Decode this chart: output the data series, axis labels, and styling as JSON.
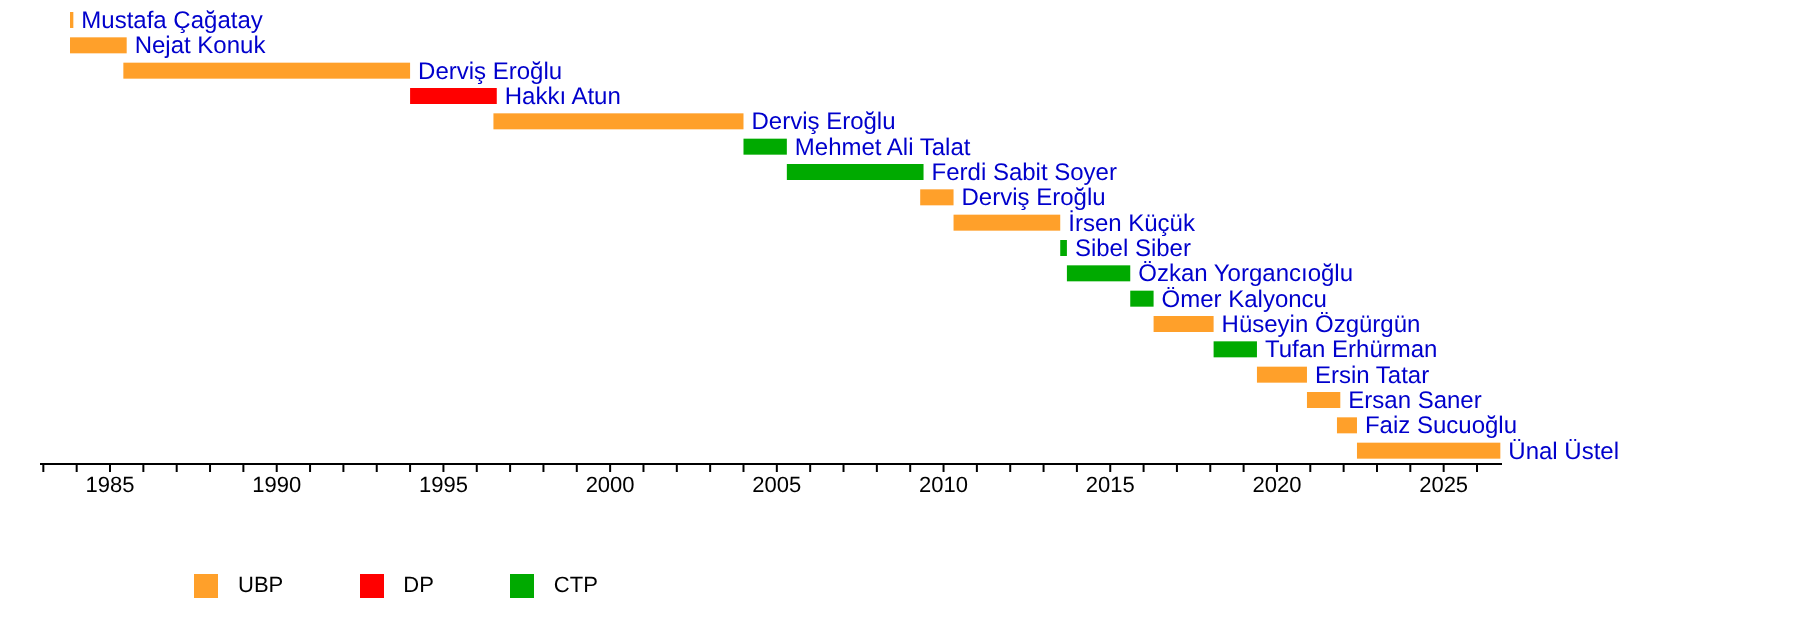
{
  "chart_data": {
    "type": "bar",
    "orientation": "horizontal",
    "categories": [
      "Mustafa Çağatay",
      "Nejat Konuk",
      "Derviş Eroğlu",
      "Hakkı Atun",
      "Derviş Eroğlu",
      "Mehmet Ali Talat",
      "Ferdi Sabit Soyer",
      "Derviş Eroğlu",
      "İrsen Küçük",
      "Sibel Siber",
      "Özkan Yorgancıoğlu",
      "Ömer Kalyoncu",
      "Hüseyin Özgürgün",
      "Tufan Erhürman",
      "Ersin Tatar",
      "Ersan Saner",
      "Faiz Sucuoğlu",
      "Ünal Üstel"
    ],
    "series": [
      {
        "name": "UBP",
        "color": "#ffa02a",
        "base": [
          1983.8,
          1983.8,
          1985.4,
          null,
          1996.5,
          null,
          null,
          2009.3,
          2010.3,
          null,
          null,
          null,
          2016.3,
          null,
          2019.4,
          2020.9,
          2021.8,
          2022.4
        ],
        "values": [
          0.1,
          1.7,
          8.6,
          null,
          7.5,
          null,
          null,
          1.0,
          3.2,
          null,
          null,
          null,
          1.8,
          null,
          1.5,
          1.0,
          0.6,
          4.3
        ]
      },
      {
        "name": "DP",
        "color": "#ff0000",
        "base": [
          null,
          null,
          null,
          1994.0,
          null,
          null,
          null,
          null,
          null,
          null,
          null,
          null,
          null,
          null,
          null,
          null,
          null,
          null
        ],
        "values": [
          null,
          null,
          null,
          2.6,
          null,
          null,
          null,
          null,
          null,
          null,
          null,
          null,
          null,
          null,
          null,
          null,
          null,
          null
        ]
      },
      {
        "name": "CTP",
        "color": "#00aa00",
        "base": [
          null,
          null,
          null,
          null,
          null,
          2004.0,
          2005.3,
          null,
          null,
          2013.5,
          2013.7,
          2015.6,
          null,
          2018.1,
          null,
          null,
          null,
          null
        ],
        "values": [
          null,
          null,
          null,
          null,
          null,
          1.3,
          4.1,
          null,
          null,
          0.2,
          1.9,
          0.7,
          null,
          1.3,
          null,
          null,
          null,
          null
        ]
      }
    ],
    "xlim": [
      1982.9,
      2026.75
    ],
    "xticks": [
      {
        "value": 1983,
        "label": null
      },
      {
        "value": 1984,
        "label": null
      },
      1985,
      {
        "value": 1986,
        "label": null
      },
      {
        "value": 1987,
        "label": null
      },
      {
        "value": 1988,
        "label": null
      },
      {
        "value": 1989,
        "label": null
      },
      1990,
      {
        "value": 1991,
        "label": null
      },
      {
        "value": 1992,
        "label": null
      },
      {
        "value": 1993,
        "label": null
      },
      {
        "value": 1994,
        "label": null
      },
      1995,
      {
        "value": 1996,
        "label": null
      },
      {
        "value": 1997,
        "label": null
      },
      {
        "value": 1998,
        "label": null
      },
      {
        "value": 1999,
        "label": null
      },
      2000,
      {
        "value": 2001,
        "label": null
      },
      {
        "value": 2002,
        "label": null
      },
      {
        "value": 2003,
        "label": null
      },
      {
        "value": 2004,
        "label": null
      },
      2005,
      {
        "value": 2006,
        "label": null
      },
      {
        "value": 2007,
        "label": null
      },
      {
        "value": 2008,
        "label": null
      },
      {
        "value": 2009,
        "label": null
      },
      2010,
      {
        "value": 2011,
        "label": null
      },
      {
        "value": 2012,
        "label": null
      },
      {
        "value": 2013,
        "label": null
      },
      {
        "value": 2014,
        "label": null
      },
      2015,
      {
        "value": 2016,
        "label": null
      },
      {
        "value": 2017,
        "label": null
      },
      {
        "value": 2018,
        "label": null
      },
      {
        "value": 2019,
        "label": null
      },
      2020,
      {
        "value": 2021,
        "label": null
      },
      {
        "value": 2022,
        "label": null
      },
      {
        "value": 2023,
        "label": null
      },
      {
        "value": 2024,
        "label": null
      },
      2025,
      {
        "value": 2026,
        "label": null
      }
    ],
    "tick_labels": "x",
    "grid": false,
    "legend": "bottom left"
  }
}
